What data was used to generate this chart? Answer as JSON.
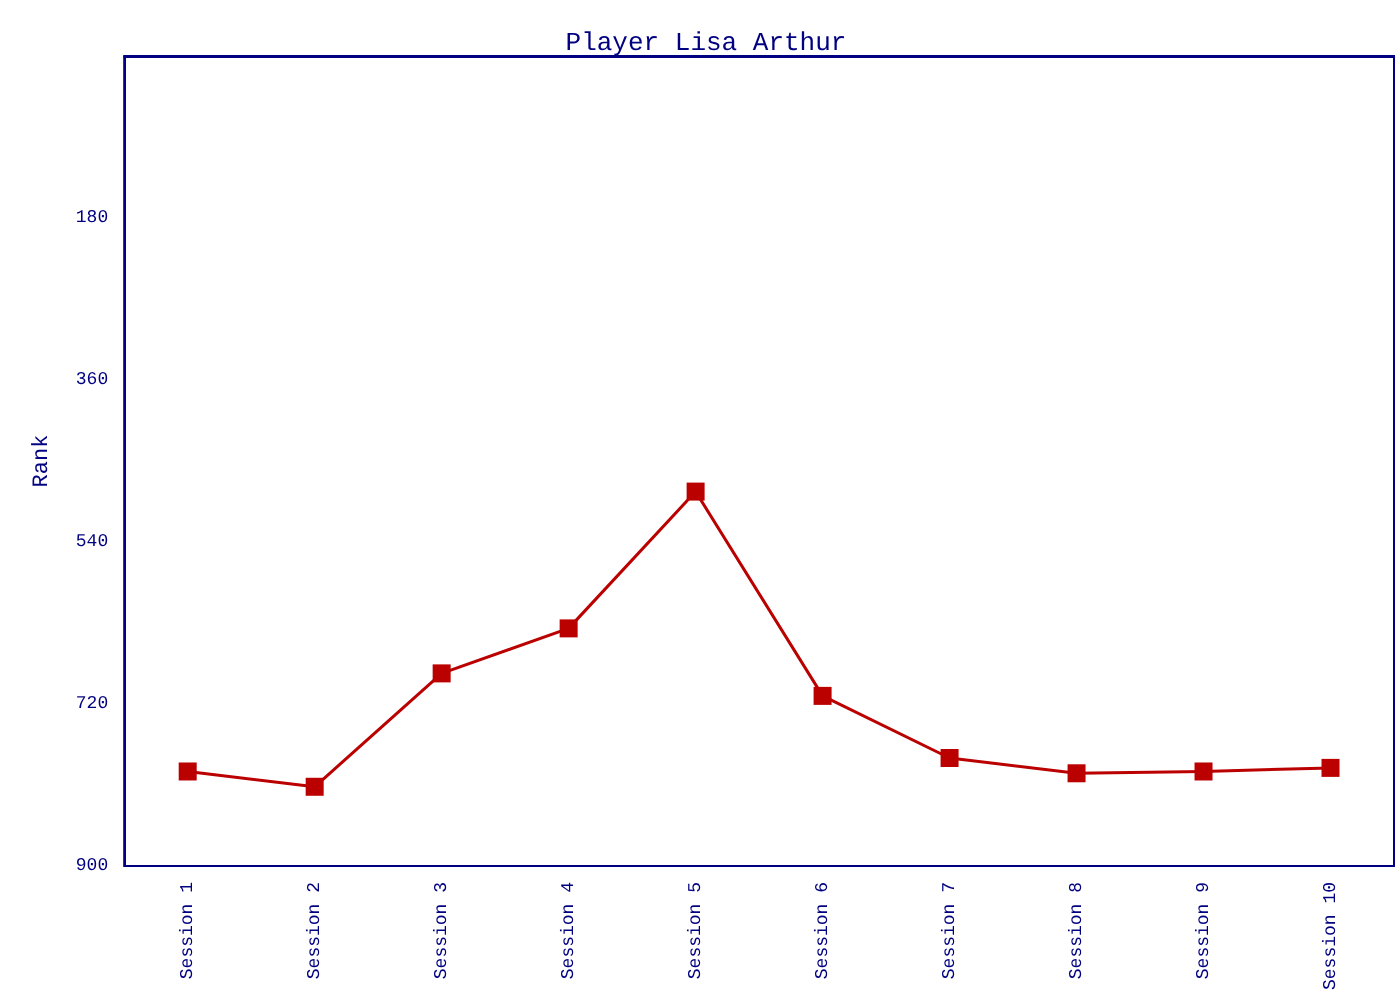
{
  "chart_data": {
    "type": "line",
    "title": "Player Lisa Arthur",
    "ylabel": "Rank",
    "categories": [
      "Session 1",
      "Session 2",
      "Session 3",
      "Session 4",
      "Session 5",
      "Session 6",
      "Session 7",
      "Session 8",
      "Session 9",
      "Session 10"
    ],
    "series": [
      {
        "color": "#bb0000",
        "values": [
          795,
          812,
          686,
          636,
          484,
          711,
          780,
          797,
          795,
          791
        ]
      }
    ],
    "ylim": [
      900,
      0
    ],
    "yticks": [
      180,
      360,
      540,
      720,
      900
    ],
    "marker": "square",
    "line_style": "solid"
  }
}
